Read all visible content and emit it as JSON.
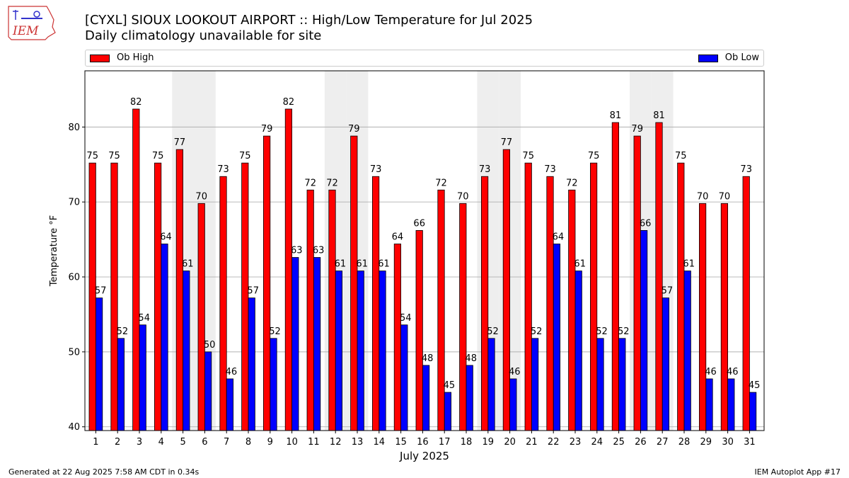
{
  "header": {
    "logo_text": "IEM",
    "title": "[CYXL] SIOUX LOOKOUT AIRPORT :: High/Low Temperature for Jul 2025",
    "subtitle": "Daily climatology unavailable for site"
  },
  "footer": {
    "left": "Generated at 22 Aug 2025 7:58 AM CDT in 0.34s",
    "right": "IEM Autoplot App #17"
  },
  "colors": {
    "high": "#ff0000",
    "low": "#0000ff",
    "weekend": "#eeeeee",
    "grid": "#b0b0b0"
  },
  "chart_data": {
    "type": "bar",
    "xlabel": "July 2025",
    "ylabel": "Temperature °F",
    "ylim": [
      39.5,
      87.5
    ],
    "yticks": [
      40,
      50,
      60,
      70,
      80
    ],
    "grid": true,
    "legend": "top",
    "categories": [
      "1",
      "2",
      "3",
      "4",
      "5",
      "6",
      "7",
      "8",
      "9",
      "10",
      "11",
      "12",
      "13",
      "14",
      "15",
      "16",
      "17",
      "18",
      "19",
      "20",
      "21",
      "22",
      "23",
      "24",
      "25",
      "26",
      "27",
      "28",
      "29",
      "30",
      "31"
    ],
    "series": [
      {
        "name": "Ob High",
        "color": "#ff0000",
        "values": [
          75,
          75,
          82,
          75,
          77,
          70,
          73,
          75,
          79,
          82,
          72,
          72,
          79,
          73,
          64,
          66,
          72,
          70,
          73,
          77,
          75,
          73,
          72,
          75,
          81,
          79,
          81,
          75,
          70,
          70,
          73
        ],
        "plot_values": [
          75.2,
          75.2,
          82.4,
          75.2,
          77.0,
          69.8,
          73.4,
          75.2,
          78.8,
          82.4,
          71.6,
          71.6,
          78.8,
          73.4,
          64.4,
          66.2,
          71.6,
          69.8,
          73.4,
          77.0,
          75.2,
          73.4,
          71.6,
          75.2,
          80.6,
          78.8,
          80.6,
          75.2,
          69.8,
          69.8,
          73.4
        ]
      },
      {
        "name": "Ob Low",
        "color": "#0000ff",
        "values": [
          57,
          52,
          54,
          64,
          61,
          50,
          46,
          57,
          52,
          63,
          63,
          61,
          61,
          61,
          54,
          48,
          45,
          48,
          52,
          46,
          52,
          64,
          61,
          52,
          52,
          66,
          57,
          61,
          46,
          46,
          45
        ],
        "plot_values": [
          57.2,
          51.8,
          53.6,
          64.4,
          60.8,
          50.0,
          46.4,
          57.2,
          51.8,
          62.6,
          62.6,
          60.8,
          60.8,
          60.8,
          53.6,
          48.2,
          44.6,
          48.2,
          51.8,
          46.4,
          51.8,
          64.4,
          60.8,
          51.8,
          51.8,
          66.2,
          57.2,
          60.8,
          46.4,
          46.4,
          44.6
        ]
      }
    ],
    "weekend_days": [
      5,
      6,
      12,
      13,
      19,
      20,
      26,
      27
    ]
  }
}
